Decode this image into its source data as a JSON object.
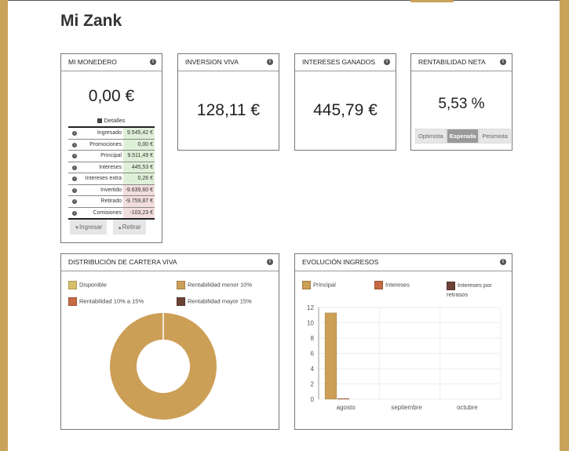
{
  "page": {
    "title": "Mi Zank"
  },
  "colors": {
    "gold": "#c9a35a",
    "disponible": "#d7c06a",
    "menor10": "#cc9f57",
    "10a15": "#c46a44",
    "mayor15": "#6b4235"
  },
  "monedero": {
    "title": "MI MONEDERO",
    "balance": "0,00 €",
    "details_label": "Detalles",
    "rows": [
      {
        "label": "Ingresado",
        "value": "9.545,42 €",
        "kind": "pos"
      },
      {
        "label": "Promociones",
        "value": "0,00 €",
        "kind": "pos"
      },
      {
        "label": "Principal",
        "value": "9.511,49 €",
        "kind": "pos"
      },
      {
        "label": "Intereses",
        "value": "445,53 €",
        "kind": "pos"
      },
      {
        "label": "Intereses extra",
        "value": "0,26 €",
        "kind": "pos"
      },
      {
        "label": "Invertido",
        "value": "-9.639,60 €",
        "kind": "neg"
      },
      {
        "label": "Retirado",
        "value": "-9.759,87 €",
        "kind": "neg"
      },
      {
        "label": "Comisiones",
        "value": "-103,23 €",
        "kind": "neg"
      }
    ],
    "ingresar_label": "Ingresar",
    "retirar_label": "Retirar"
  },
  "inversion": {
    "title": "INVERSION VIVA",
    "value": "128,11 €"
  },
  "intereses": {
    "title": "INTERESES GANADOS",
    "value": "445,79 €"
  },
  "rentabilidad": {
    "title": "RENTABILIDAD NETA",
    "value": "5,53 %",
    "options": [
      "Optimista",
      "Esperada",
      "Pesimista"
    ],
    "selected": "Esperada"
  },
  "distribucion": {
    "title": "DISTRIBUCIÓN DE CARTERA VIVA",
    "legend": [
      "Disponible",
      "Rentabilidad menor 10%",
      "Rentabilidad 10% a 15%",
      "Rentabilidad mayor 15%"
    ]
  },
  "evolucion": {
    "title": "EVOLUCIÓN INGRESOS",
    "legend": [
      "Principal",
      "Intereses",
      "Intereses por retrasos"
    ]
  },
  "chart_data": [
    {
      "type": "pie",
      "categories": [
        "Disponible",
        "Rentabilidad menor 10%",
        "Rentabilidad 10% a 15%",
        "Rentabilidad mayor 15%"
      ],
      "values": [
        0,
        100,
        0,
        0
      ]
    },
    {
      "type": "bar",
      "categories": [
        "agosto",
        "septiembre",
        "octubre"
      ],
      "series": [
        {
          "name": "Principal",
          "values": [
            11.3,
            0,
            0
          ]
        },
        {
          "name": "Intereses",
          "values": [
            0.1,
            0,
            0
          ]
        },
        {
          "name": "Intereses por retrasos",
          "values": [
            0,
            0,
            0
          ]
        }
      ],
      "yticks": [
        "0",
        "2",
        "4",
        "6",
        "8",
        "10",
        "12"
      ],
      "ylim": [
        0,
        12
      ]
    }
  ]
}
